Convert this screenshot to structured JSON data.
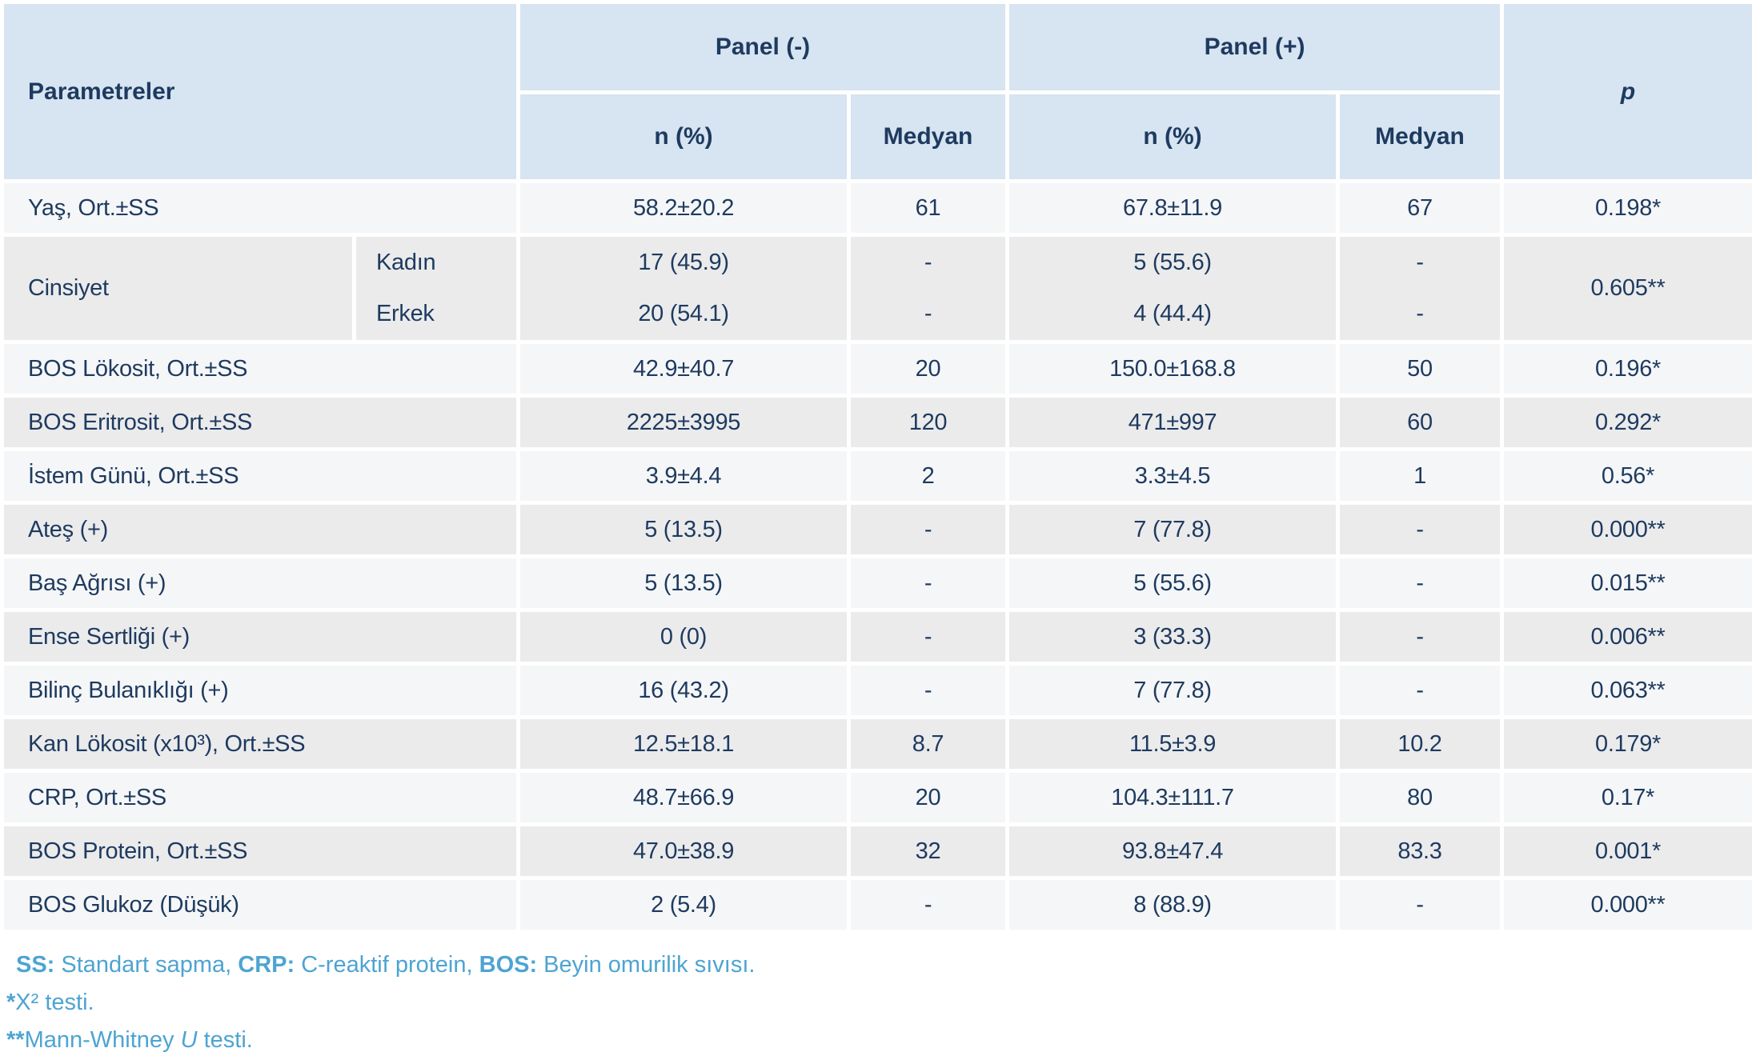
{
  "colors": {
    "header_bg": "#d7e4f1",
    "row_light": "#f5f6f7",
    "row_dark": "#ebebec",
    "text_navy": "#1e3a5f",
    "footnote_blue": "#4da4d2",
    "gap_white": "#ffffff"
  },
  "table": {
    "header": {
      "parametreler": "Parametreler",
      "panel_minus": "Panel (-)",
      "panel_plus": "Panel (+)",
      "n_pct": "n (%)",
      "medyan": "Medyan",
      "p": "p"
    },
    "rows": [
      {
        "shade": "light",
        "label": "Yaş, Ort.±SS",
        "n1": "58.2±20.2",
        "med1": "61",
        "n2": "67.8±11.9",
        "med2": "67",
        "p": "0.198*"
      },
      {
        "shade": "dark",
        "label": "Cinsiyet",
        "sub": [
          "Kadın",
          "Erkek"
        ],
        "n1": [
          "17 (45.9)",
          "20 (54.1)"
        ],
        "med1": [
          "-",
          "-"
        ],
        "n2": [
          "5 (55.6)",
          "4 (44.4)"
        ],
        "med2": [
          "-",
          "-"
        ],
        "p": "0.605**"
      },
      {
        "shade": "light",
        "label": "BOS Lökosit, Ort.±SS",
        "n1": "42.9±40.7",
        "med1": "20",
        "n2": "150.0±168.8",
        "med2": "50",
        "p": "0.196*"
      },
      {
        "shade": "dark",
        "label": "BOS Eritrosit, Ort.±SS",
        "n1": "2225±3995",
        "med1": "120",
        "n2": "471±997",
        "med2": "60",
        "p": "0.292*"
      },
      {
        "shade": "light",
        "label": "İstem Günü, Ort.±SS",
        "n1": "3.9±4.4",
        "med1": "2",
        "n2": "3.3±4.5",
        "med2": "1",
        "p": "0.56*"
      },
      {
        "shade": "dark",
        "label": "Ateş (+)",
        "n1": "5 (13.5)",
        "med1": "-",
        "n2": "7 (77.8)",
        "med2": "-",
        "p": "0.000**"
      },
      {
        "shade": "light",
        "label": "Baş Ağrısı (+)",
        "n1": "5 (13.5)",
        "med1": "-",
        "n2": "5 (55.6)",
        "med2": "-",
        "p": "0.015**"
      },
      {
        "shade": "dark",
        "label": "Ense Sertliği (+)",
        "n1": "0 (0)",
        "med1": "-",
        "n2": "3 (33.3)",
        "med2": "-",
        "p": "0.006**"
      },
      {
        "shade": "light",
        "label": "Bilinç Bulanıklığı (+)",
        "n1": "16 (43.2)",
        "med1": "-",
        "n2": "7 (77.8)",
        "med2": "-",
        "p": "0.063**"
      },
      {
        "shade": "dark",
        "label": "Kan Lökosit (x10³), Ort.±SS",
        "n1": "12.5±18.1",
        "med1": "8.7",
        "n2": "11.5±3.9",
        "med2": "10.2",
        "p": "0.179*"
      },
      {
        "shade": "light",
        "label": "CRP, Ort.±SS",
        "n1": "48.7±66.9",
        "med1": "20",
        "n2": "104.3±111.7",
        "med2": "80",
        "p": "0.17*"
      },
      {
        "shade": "dark",
        "label": "BOS Protein, Ort.±SS",
        "n1": "47.0±38.9",
        "med1": "32",
        "n2": "93.8±47.4",
        "med2": "83.3",
        "p": "0.001*"
      },
      {
        "shade": "light",
        "label": "BOS Glukoz (Düşük)",
        "n1": "2 (5.4)",
        "med1": "-",
        "n2": "8 (88.9)",
        "med2": "-",
        "p": "0.000**"
      }
    ],
    "footnotes": [
      {
        "indent": true,
        "segments": [
          {
            "text": "SS:",
            "bold": true
          },
          {
            "text": " Standart sapma, "
          },
          {
            "text": "CRP:",
            "bold": true
          },
          {
            "text": " C-reaktif protein, "
          },
          {
            "text": "BOS:",
            "bold": true
          },
          {
            "text": " Beyin omurilik sıvısı."
          }
        ]
      },
      {
        "segments": [
          {
            "text": "*",
            "bold": true
          },
          {
            "text": "X² testi."
          }
        ]
      },
      {
        "segments": [
          {
            "text": "**",
            "bold": true
          },
          {
            "text": "Mann-Whitney "
          },
          {
            "text": "U",
            "italic": true
          },
          {
            "text": " testi."
          }
        ]
      }
    ]
  }
}
